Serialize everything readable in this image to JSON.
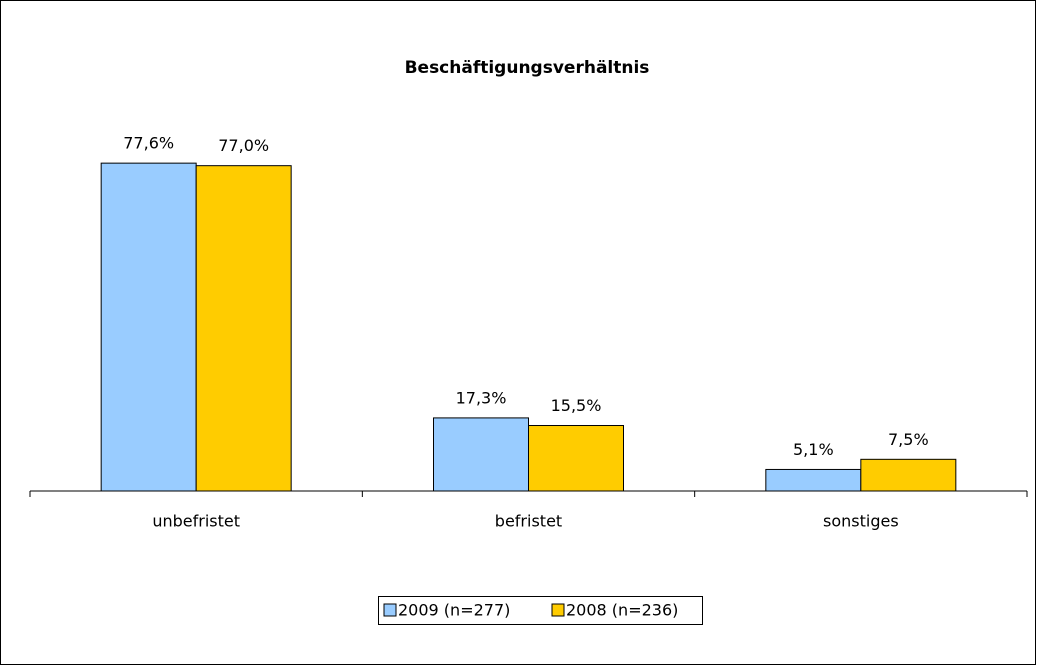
{
  "chart_data": {
    "type": "bar",
    "title": "Beschäftigungsverhältnis",
    "categories": [
      "unbefristet",
      "befristet",
      "sonstiges"
    ],
    "series": [
      {
        "name": "2009 (n=277)",
        "color": "#99ccff",
        "values": [
          77.6,
          17.3,
          5.1
        ],
        "value_labels": [
          "77,6%",
          "17,3%",
          "5,1%"
        ]
      },
      {
        "name": "2008 (n=236)",
        "color": "#ffcc00",
        "values": [
          77.0,
          15.5,
          7.5
        ],
        "value_labels": [
          "77,0%",
          "15,5%",
          "7,5%"
        ]
      }
    ],
    "ylim": [
      0,
      80
    ]
  }
}
